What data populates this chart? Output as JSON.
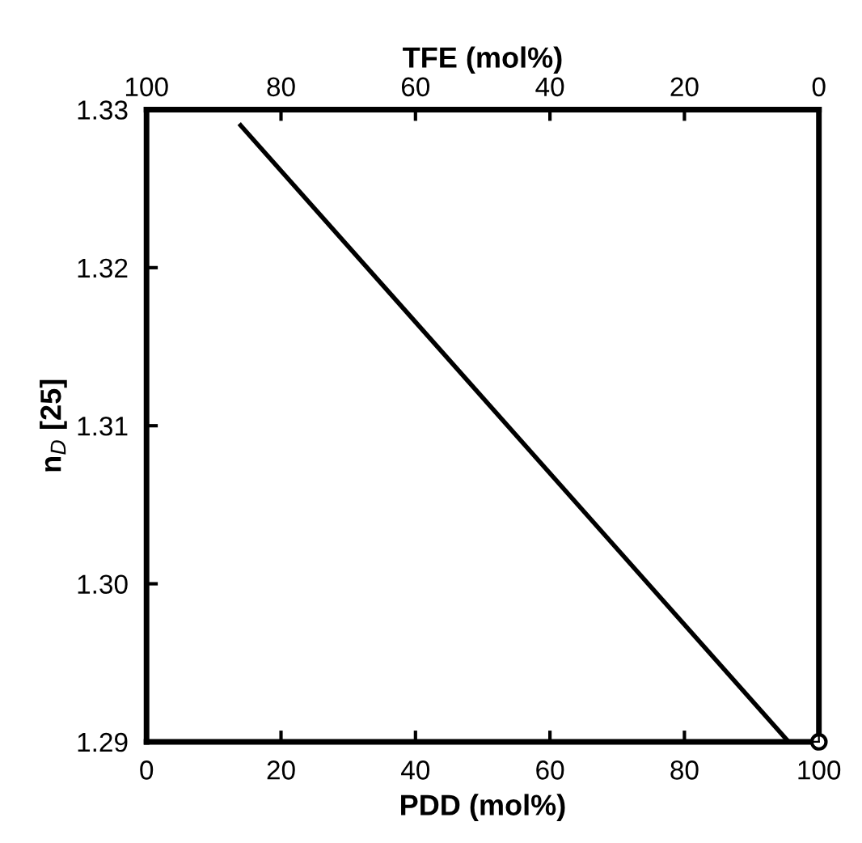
{
  "chart_data": {
    "type": "line",
    "xlabel": "PDD (mol%)",
    "ylabel": "n$_{D}$ [25]",
    "x2label": "TFE (mol%)",
    "xlim": [
      0,
      100
    ],
    "xticks": [
      0,
      20,
      40,
      60,
      80,
      100
    ],
    "x2lim": [
      100,
      0
    ],
    "x2ticks": [
      100,
      80,
      60,
      40,
      20,
      0
    ],
    "ylim": [
      1.29,
      1.33
    ],
    "yticks": [
      1.29,
      {
        "value": 1.3,
        "label": "1.30"
      },
      1.31,
      1.32,
      1.33
    ],
    "grid": false,
    "legend": false,
    "series": [
      {
        "color": "#000000",
        "x": [
          14,
          95.5
        ],
        "values": [
          1.329,
          1.29
        ],
        "marker": "none",
        "line_style": "solid"
      },
      {
        "type": "scatter",
        "color": "#000000",
        "x": [
          100
        ],
        "values": [
          1.29
        ],
        "marker": "circle"
      }
    ]
  }
}
